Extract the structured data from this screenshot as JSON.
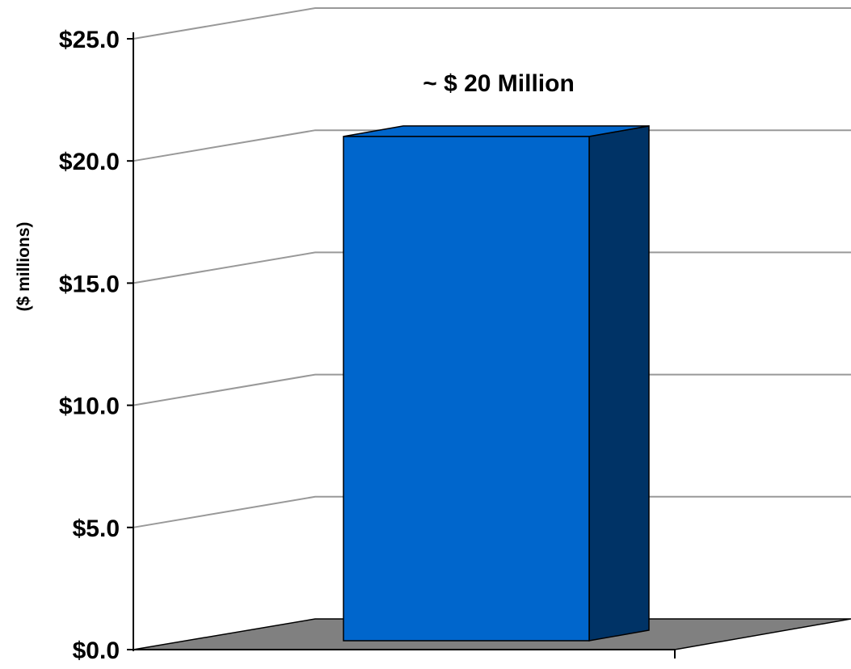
{
  "chart_data": {
    "type": "bar",
    "categories": [
      ""
    ],
    "values": [
      21.2
    ],
    "ylabel": "($ millions)",
    "ylim": [
      0,
      25
    ],
    "yticks": [
      0,
      5,
      10,
      15,
      20,
      25
    ],
    "ytick_labels": [
      "$0.0",
      "$5.0",
      "$10.0",
      "$15.0",
      "$20.0",
      "$25.0"
    ],
    "annotation": "~ $ 20 Million",
    "grid": true,
    "legend": "none",
    "style": "3d",
    "colors": {
      "bar_front": "#0066CC",
      "bar_side": "#003366",
      "floor": "#808080",
      "gridline": "#999999"
    }
  }
}
